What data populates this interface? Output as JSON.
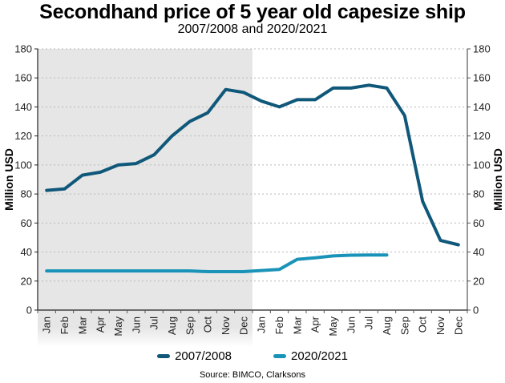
{
  "chart_data": {
    "type": "line",
    "title": "Secondhand price of 5 year old capesize ship",
    "subtitle": "2007/2008 and 2020/2021",
    "xlabel": "",
    "ylabel": "Million USD",
    "ylabel_right": "Million USD",
    "ylim": [
      0,
      180
    ],
    "yticks": [
      0,
      20,
      40,
      60,
      80,
      100,
      120,
      140,
      160,
      180
    ],
    "grid": true,
    "categories": [
      "Jan",
      "Feb",
      "Mar",
      "Apr",
      "May",
      "Jun",
      "Jul",
      "Aug",
      "Sep",
      "Oct",
      "Nov",
      "Dec",
      "Jan",
      "Feb",
      "Mar",
      "Apr",
      "May",
      "Jun",
      "Jul",
      "Aug",
      "Sep",
      "Oct",
      "Nov",
      "Dec"
    ],
    "shaded_region": {
      "from_index": 0,
      "to_index": 11,
      "meaning": "first year (2007 / 2020)"
    },
    "series": [
      {
        "name": "2007/2008",
        "color": "#10587a",
        "values": [
          82.5,
          83.5,
          93,
          95,
          100,
          101,
          107,
          120,
          130,
          136,
          152,
          150,
          144,
          140,
          145,
          145,
          153,
          153,
          155,
          153,
          134,
          75,
          48,
          45
        ]
      },
      {
        "name": "2020/2021",
        "color": "#1a93b8",
        "values": [
          27,
          27,
          27,
          27,
          27,
          27,
          27,
          27,
          27,
          26.5,
          26.5,
          26.5,
          27.3,
          28,
          35,
          36,
          37.3,
          37.8,
          38,
          38,
          null,
          null,
          null,
          null
        ]
      }
    ],
    "legend_position": "bottom-center",
    "source": "Source: BIMCO, Clarksons"
  }
}
